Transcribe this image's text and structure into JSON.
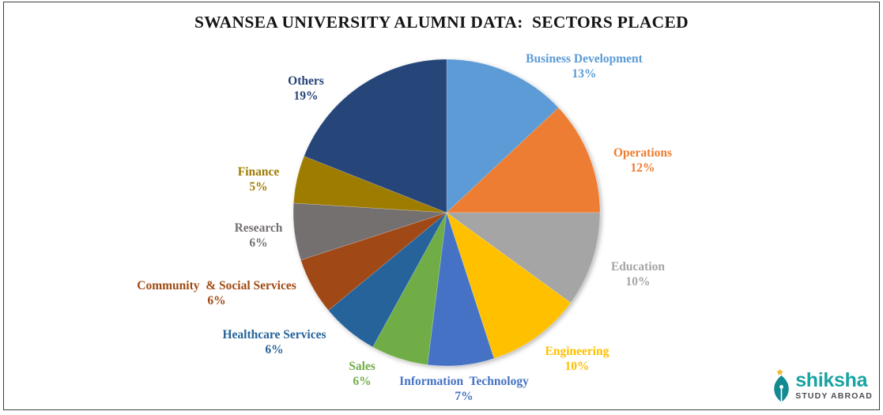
{
  "title": "SWANSEA UNIVERSITY ALUMNI DATA:  SECTORS PLACED",
  "chart_data": {
    "type": "pie",
    "title": "SWANSEA UNIVERSITY ALUMNI DATA: SECTORS PLACED",
    "start_angle_deg": 0,
    "direction": "clockwise",
    "legend": "none",
    "label_position": "outside-end",
    "label_format": "name + percent",
    "slices": [
      {
        "label": "Business Development",
        "value": 13,
        "display": "13%",
        "color": "#5B9BD5"
      },
      {
        "label": "Operations",
        "value": 12,
        "display": "12%",
        "color": "#ED7D31"
      },
      {
        "label": "Education",
        "value": 10,
        "display": "10%",
        "color": "#A5A5A5"
      },
      {
        "label": "Engineering",
        "value": 10,
        "display": "10%",
        "color": "#FFC000"
      },
      {
        "label": "Information  Technology",
        "value": 7,
        "display": "7%",
        "color": "#4472C4"
      },
      {
        "label": "Sales",
        "value": 6,
        "display": "6%",
        "color": "#70AD47"
      },
      {
        "label": "Healthcare Services",
        "value": 6,
        "display": "6%",
        "color": "#25649B"
      },
      {
        "label": "Community  & Social Services",
        "value": 6,
        "display": "6%",
        "color": "#A04A12"
      },
      {
        "label": "Research",
        "value": 6,
        "display": "6%",
        "color": "#757070"
      },
      {
        "label": "Finance",
        "value": 5,
        "display": "5%",
        "color": "#9E7C00"
      },
      {
        "label": "Others",
        "value": 19,
        "display": "19%",
        "color": "#264478"
      }
    ]
  },
  "branding": {
    "name": "shiksha",
    "tagline": "STUDY ABROAD",
    "brand_color": "#18A3A1",
    "tagline_color": "#4C4C55",
    "icon": "pen-nib-icon",
    "icon_accent_color": "#F1B434"
  }
}
